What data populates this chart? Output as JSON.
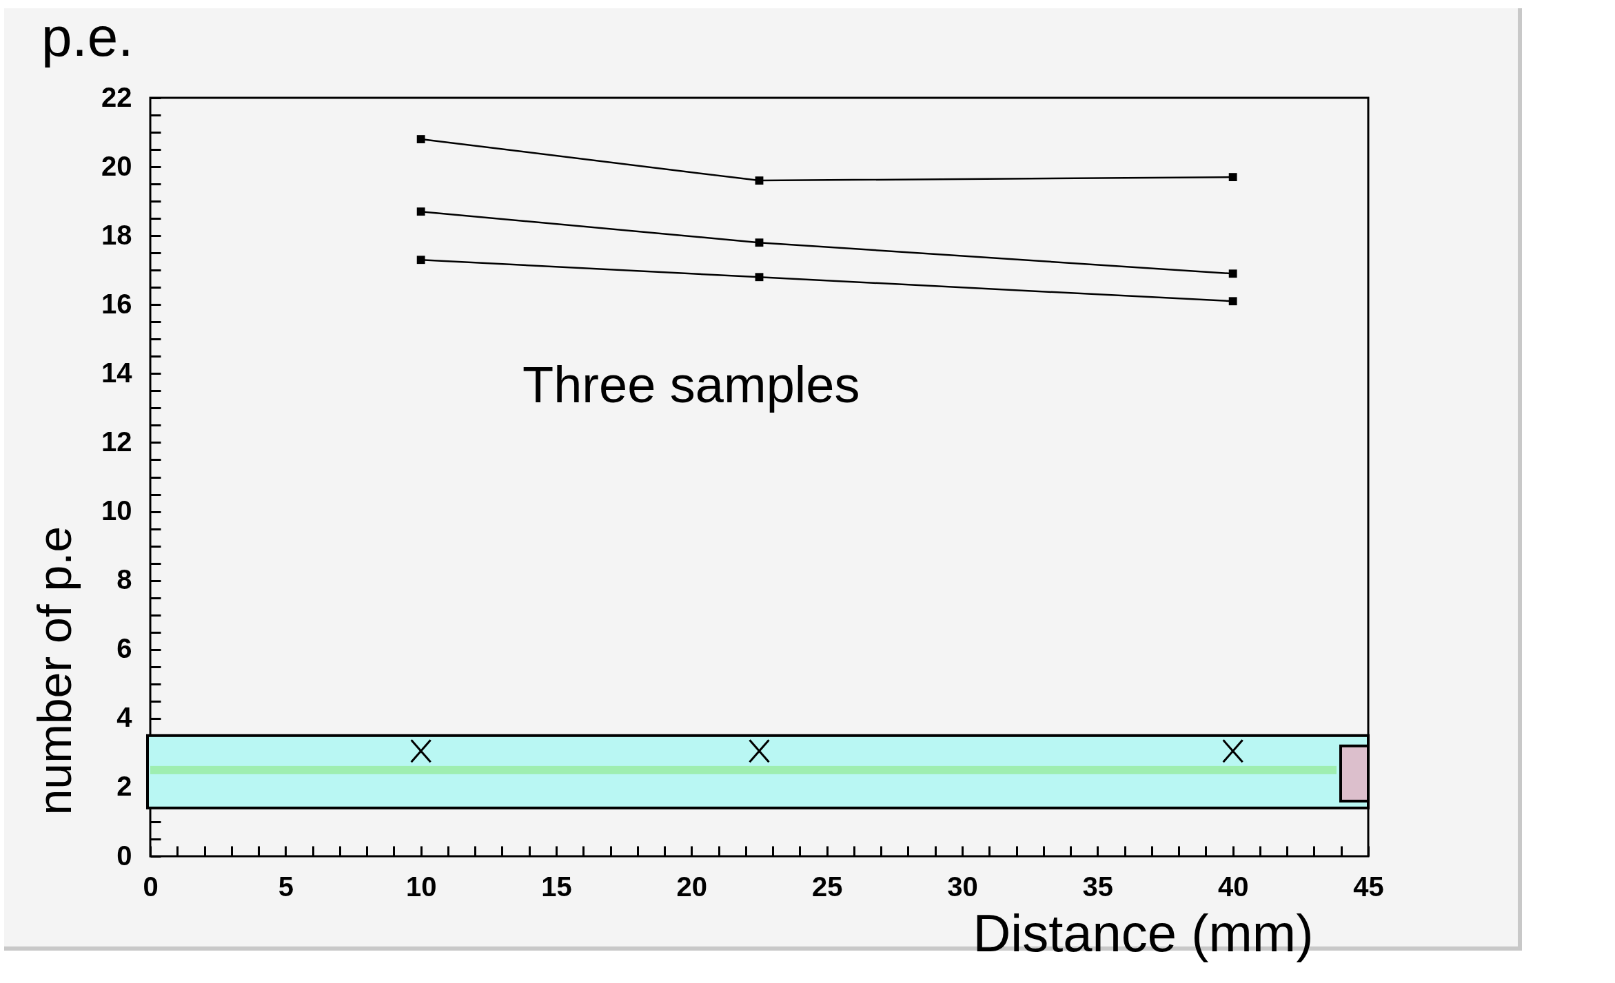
{
  "chart_data": {
    "type": "line",
    "title": "p.e.",
    "xlabel": "Distance (mm)",
    "ylabel": "number of p.e",
    "annotations": [
      "Three samples"
    ],
    "x": [
      10,
      22.5,
      40
    ],
    "series": [
      {
        "color": "#000000",
        "values": [
          20.8,
          19.6,
          19.7
        ]
      },
      {
        "color": "#000000",
        "values": [
          18.7,
          17.8,
          16.9
        ]
      },
      {
        "color": "#000000",
        "values": [
          17.3,
          16.8,
          16.1
        ]
      }
    ],
    "xlim": [
      0,
      45
    ],
    "xticks": [
      0,
      {
        "value": 1,
        "label": null
      },
      {
        "value": 2,
        "label": null
      },
      {
        "value": 3,
        "label": null
      },
      {
        "value": 4,
        "label": null
      },
      5,
      {
        "value": 6,
        "label": null
      },
      {
        "value": 7,
        "label": null
      },
      {
        "value": 8,
        "label": null
      },
      {
        "value": 9,
        "label": null
      },
      10,
      {
        "value": 11,
        "label": null
      },
      {
        "value": 12,
        "label": null
      },
      {
        "value": 13,
        "label": null
      },
      {
        "value": 14,
        "label": null
      },
      15,
      {
        "value": 16,
        "label": null
      },
      {
        "value": 17,
        "label": null
      },
      {
        "value": 18,
        "label": null
      },
      {
        "value": 19,
        "label": null
      },
      20,
      {
        "value": 21,
        "label": null
      },
      {
        "value": 22,
        "label": null
      },
      {
        "value": 23,
        "label": null
      },
      {
        "value": 24,
        "label": null
      },
      25,
      {
        "value": 26,
        "label": null
      },
      {
        "value": 27,
        "label": null
      },
      {
        "value": 28,
        "label": null
      },
      {
        "value": 29,
        "label": null
      },
      30,
      {
        "value": 31,
        "label": null
      },
      {
        "value": 32,
        "label": null
      },
      {
        "value": 33,
        "label": null
      },
      {
        "value": 34,
        "label": null
      },
      35,
      {
        "value": 36,
        "label": null
      },
      {
        "value": 37,
        "label": null
      },
      {
        "value": 38,
        "label": null
      },
      {
        "value": 39,
        "label": null
      },
      40,
      {
        "value": 41,
        "label": null
      },
      {
        "value": 42,
        "label": null
      },
      {
        "value": 43,
        "label": null
      },
      {
        "value": 44,
        "label": null
      },
      45
    ],
    "ylim": [
      0,
      22
    ],
    "yticks": [
      0,
      {
        "value": 0.5,
        "label": null
      },
      {
        "value": 1,
        "label": null
      },
      {
        "value": 1.5,
        "label": null
      },
      2,
      {
        "value": 2.5,
        "label": null
      },
      {
        "value": 3,
        "label": null
      },
      {
        "value": 3.5,
        "label": null
      },
      4,
      {
        "value": 4.5,
        "label": null
      },
      {
        "value": 5,
        "label": null
      },
      {
        "value": 5.5,
        "label": null
      },
      6,
      {
        "value": 6.5,
        "label": null
      },
      {
        "value": 7,
        "label": null
      },
      {
        "value": 7.5,
        "label": null
      },
      8,
      {
        "value": 8.5,
        "label": null
      },
      {
        "value": 9,
        "label": null
      },
      {
        "value": 9.5,
        "label": null
      },
      10,
      {
        "value": 10.5,
        "label": null
      },
      {
        "value": 11,
        "label": null
      },
      {
        "value": 11.5,
        "label": null
      },
      12,
      {
        "value": 12.5,
        "label": null
      },
      {
        "value": 13,
        "label": null
      },
      {
        "value": 13.5,
        "label": null
      },
      14,
      {
        "value": 14.5,
        "label": null
      },
      {
        "value": 15,
        "label": null
      },
      {
        "value": 15.5,
        "label": null
      },
      16,
      {
        "value": 16.5,
        "label": null
      },
      {
        "value": 17,
        "label": null
      },
      {
        "value": 17.5,
        "label": null
      },
      18,
      {
        "value": 18.5,
        "label": null
      },
      {
        "value": 19,
        "label": null
      },
      {
        "value": 19.5,
        "label": null
      },
      20,
      {
        "value": 20.5,
        "label": null
      },
      {
        "value": 21,
        "label": null
      },
      {
        "value": 21.5,
        "label": null
      },
      22
    ],
    "marker": "square",
    "line_style": "solid",
    "grid": false,
    "legend": false
  }
}
